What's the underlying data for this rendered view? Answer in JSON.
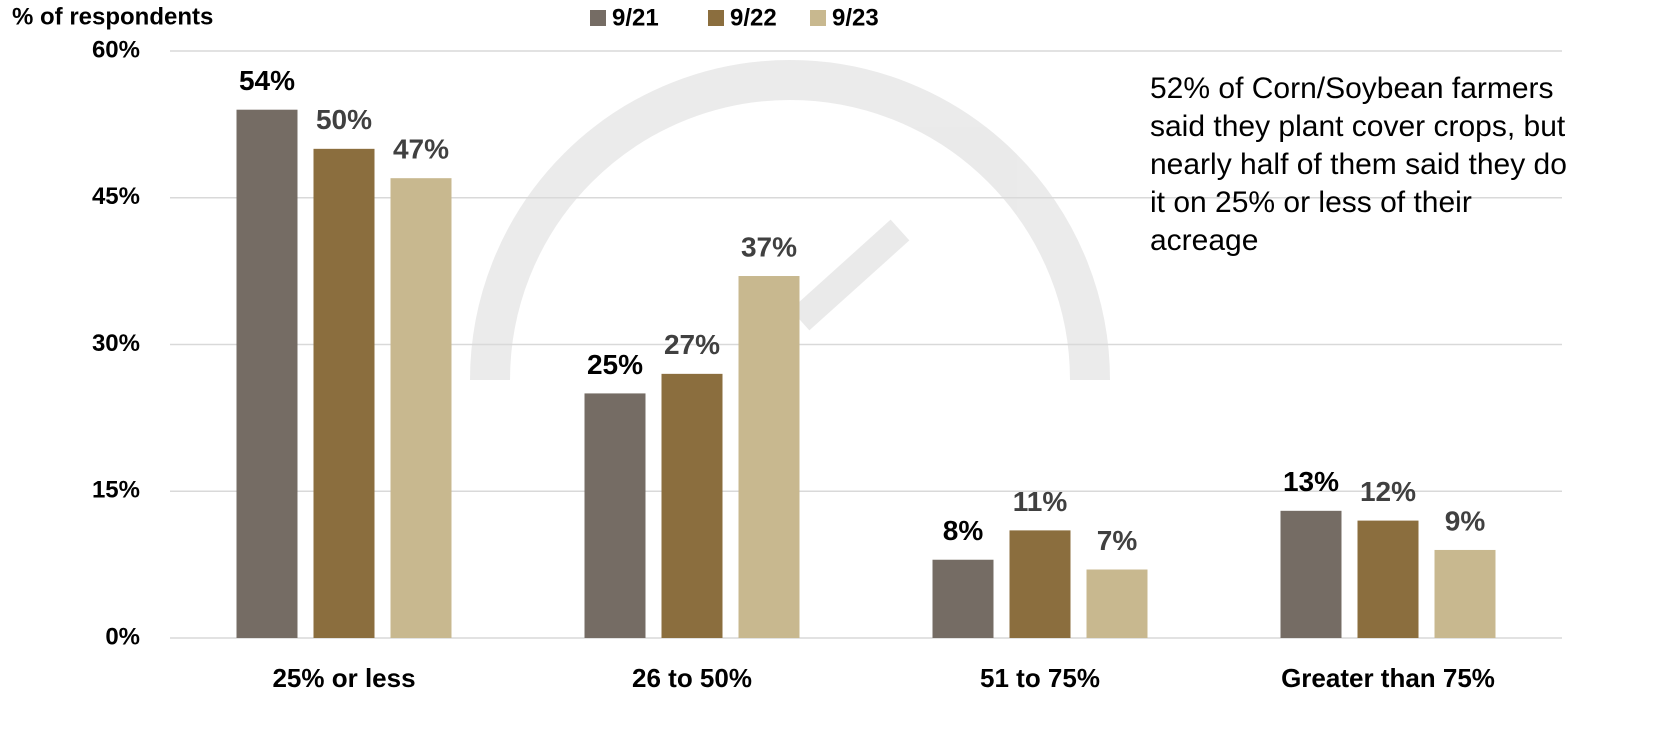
{
  "chart_data": {
    "type": "bar",
    "y_axis_label": "% of respondents",
    "annotation": "52% of Corn/Soybean farmers said they plant cover crops, but nearly half of them said they do it on 25% or less of their acreage",
    "categories": [
      "25% or less",
      "26 to 50%",
      "51 to 75%",
      "Greater than 75%"
    ],
    "series": [
      {
        "name": "9/21",
        "color": "#756c64",
        "label_color": "#000000",
        "values": [
          54,
          25,
          8,
          13
        ],
        "value_labels": [
          "54%",
          "25%",
          "8%",
          "13%"
        ]
      },
      {
        "name": "9/22",
        "color": "#8b6e3e",
        "label_color": "#404040",
        "values": [
          50,
          27,
          11,
          12
        ],
        "value_labels": [
          "50%",
          "27%",
          "11%",
          "12%"
        ]
      },
      {
        "name": "9/23",
        "color": "#c8b88f",
        "label_color": "#404040",
        "values": [
          47,
          37,
          7,
          9
        ],
        "value_labels": [
          "47%",
          "37%",
          "7%",
          "9%"
        ]
      }
    ],
    "ylim": [
      0,
      60
    ],
    "yticks": [
      {
        "value": 0,
        "label": "0%"
      },
      {
        "value": 15,
        "label": "15%"
      },
      {
        "value": 30,
        "label": "30%"
      },
      {
        "value": 45,
        "label": "45%"
      },
      {
        "value": 60,
        "label": "60%"
      }
    ],
    "grid": true,
    "legend": "top"
  }
}
